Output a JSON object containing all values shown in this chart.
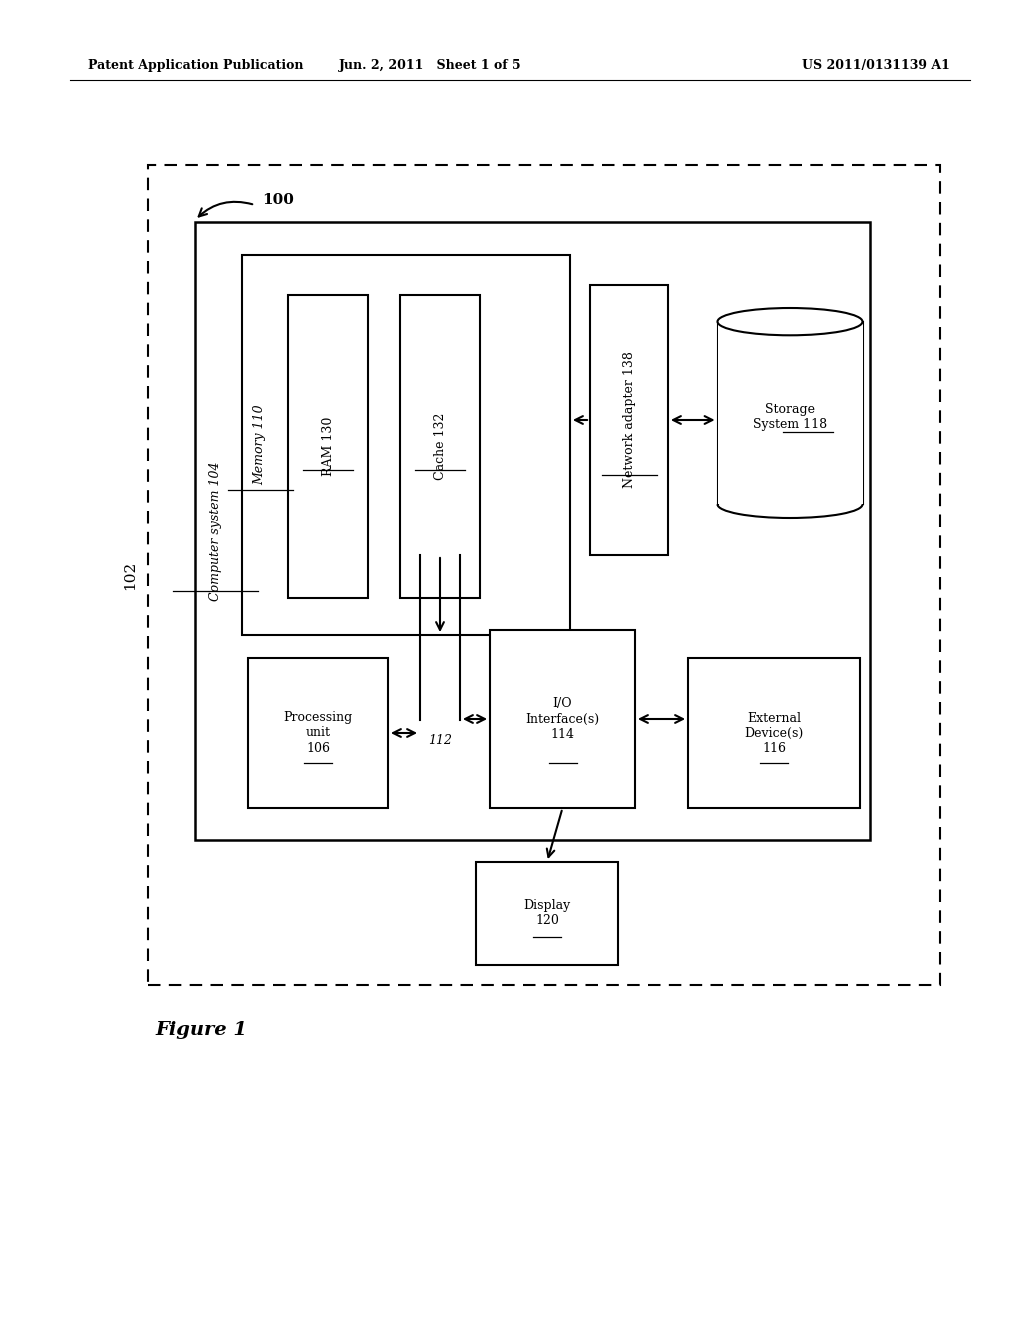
{
  "bg_color": "#ffffff",
  "header_left": "Patent Application Publication",
  "header_center": "Jun. 2, 2011   Sheet 1 of 5",
  "header_right": "US 2011/0131139 A1",
  "figure_label": "Figure 1",
  "outer_box_label": "102",
  "outer_box_ref": "100",
  "computer_system_label": "Computer system 104",
  "memory_label": "Memory 110",
  "ram_label": "RAM 130",
  "cache_label": "Cache 132",
  "network_adapter_label": "Network adapter 138",
  "storage_system_label": "Storage\nSystem 118",
  "processing_unit_label": "Processing\nunit\n106",
  "io_interface_label": "I/O\nInterface(s)\n114",
  "external_device_label": "External\nDevice(s)\n116",
  "display_label": "Display\n120",
  "bus_label": "112"
}
